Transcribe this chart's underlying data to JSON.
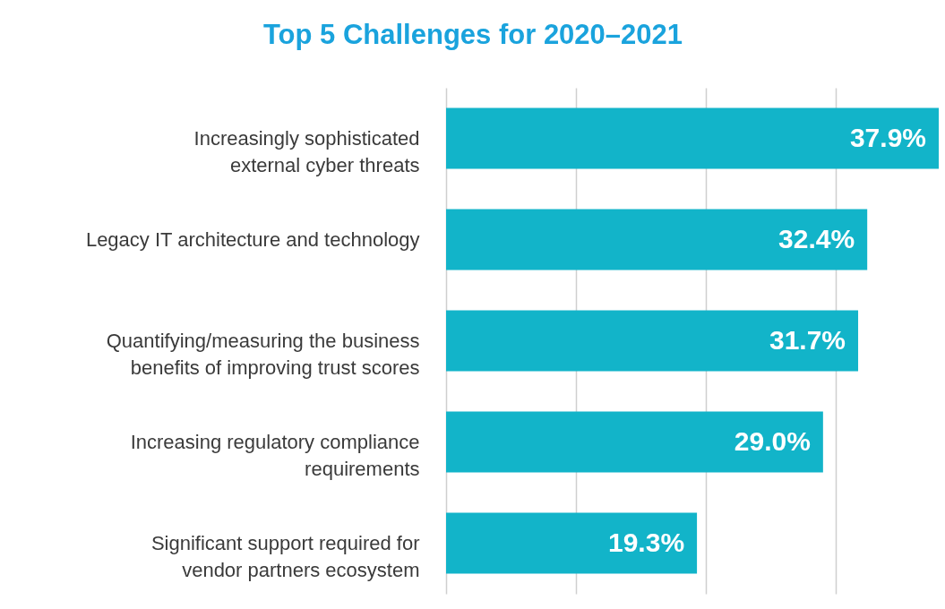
{
  "chart_data": {
    "type": "bar",
    "orientation": "horizontal",
    "title": "Top 5 Challenges for 2020–2021",
    "categories": [
      "Increasingly sophisticated external cyber threats",
      "Legacy IT architecture and technology",
      "Quantifying/measuring the business benefits of improving trust scores",
      "Increasing regulatory compliance requirements",
      "Significant support required for vendor partners ecosystem"
    ],
    "values": [
      37.9,
      32.4,
      31.7,
      29.0,
      19.3
    ],
    "value_labels": [
      "37.9%",
      "32.4%",
      "31.7%",
      "29.0%",
      "19.3%"
    ],
    "color": "#12b4c9",
    "xlim": [
      0,
      37.9
    ],
    "xticks": [
      {
        "value": 0,
        "label": null
      },
      {
        "value": 10,
        "label": null
      },
      {
        "value": 20,
        "label": null
      },
      {
        "value": 30,
        "label": null
      }
    ],
    "tick_labels": "y",
    "grid": "x"
  }
}
